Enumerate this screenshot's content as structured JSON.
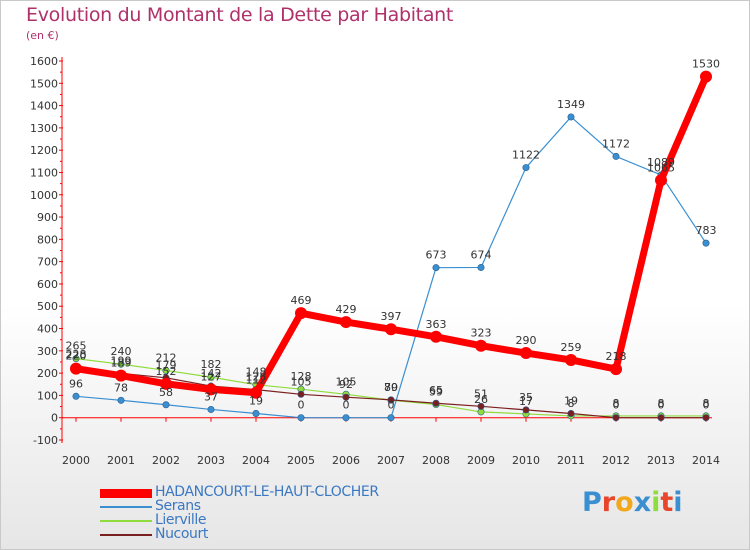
{
  "header": {
    "title": "Evolution du Montant de la Dette par Habitant",
    "subtitle": "(en €)"
  },
  "chart_data": {
    "type": "line",
    "title": "Evolution du Montant de la Dette par Habitant",
    "subtitle": "(en €)",
    "x": [
      "2000",
      "2001",
      "2002",
      "2003",
      "2004",
      "2005",
      "2006",
      "2007",
      "2008",
      "2009",
      "2010",
      "2011",
      "2012",
      "2013",
      "2014"
    ],
    "ylim": [
      -100,
      1600
    ],
    "yticks": [
      -100,
      0,
      100,
      200,
      300,
      400,
      500,
      600,
      700,
      800,
      900,
      1000,
      1100,
      1200,
      1300,
      1400,
      1500,
      1600
    ],
    "grid": false,
    "legend_position": "bottom-left",
    "series": [
      {
        "name": "HADANCOURT-LE-HAUT-CLOCHER",
        "color": "#ff0000",
        "values": [
          220,
          189,
          152,
          127,
          112,
          469,
          429,
          397,
          363,
          323,
          290,
          259,
          218,
          1065,
          1530
        ]
      },
      {
        "name": "Serans",
        "color": "#3a8fd1",
        "values": [
          96,
          78,
          58,
          37,
          19,
          0,
          0,
          0,
          673,
          674,
          1122,
          1349,
          1172,
          1089,
          783
        ]
      },
      {
        "name": "Lierville",
        "color": "#8fdc3c",
        "values": [
          265,
          240,
          212,
          182,
          148,
          128,
          105,
          79,
          59,
          26,
          17,
          8,
          8,
          8,
          8
        ]
      },
      {
        "name": "Nucourt",
        "color": "#7a1f1f",
        "values": [
          228,
          199,
          179,
          142,
          126,
          105,
          92,
          80,
          65,
          51,
          35,
          19,
          0,
          0,
          0
        ]
      }
    ]
  },
  "logo": {
    "text": "Proxiti"
  }
}
